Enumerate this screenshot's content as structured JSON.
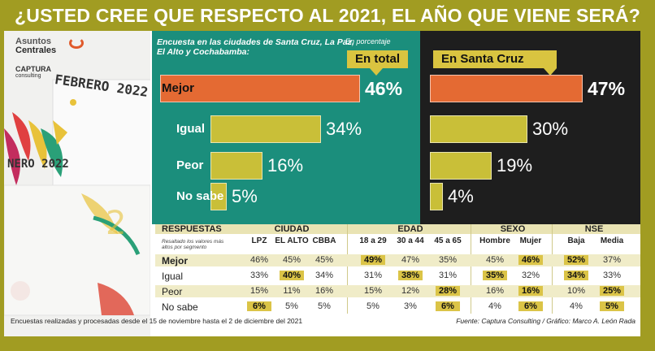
{
  "title": "¿USTED CREE QUE RESPECTO AL 2021, EL AÑO QUE VIENE SERÁ?",
  "logos": {
    "brand1_line1": "Asuntos",
    "brand1_line2": "Centrales",
    "brand2": "CAPTURA",
    "brand2_sub": "consulting"
  },
  "decor": {
    "feb": "FEBRERO 2022",
    "ene": "NERO 2022"
  },
  "panel_left": {
    "note_pre": "Encuesta ",
    "note_em": "en las ciudades de",
    "note_post": " Santa Cruz, La Paz, El Alto y Cochabamba:",
    "unit": "En porcentaje",
    "pill": "En total"
  },
  "panel_right": {
    "pill": "En Santa Cruz"
  },
  "colors": {
    "teal": "#1b8e7c",
    "dark": "#1e1e1e",
    "orange": "#e46a33",
    "olive": "#c9bf38",
    "highlight": "#dbc447"
  },
  "chart_data": [
    {
      "type": "bar",
      "title": "En total",
      "categories": [
        "Mejor",
        "Igual",
        "Peor",
        "No sabe"
      ],
      "values": [
        46,
        34,
        16,
        5
      ],
      "labels": [
        "46%",
        "34%",
        "16%",
        "5%"
      ],
      "ylim": [
        0,
        50
      ]
    },
    {
      "type": "bar",
      "title": "En Santa Cruz",
      "categories": [
        "Mejor",
        "Igual",
        "Peor",
        "No sabe"
      ],
      "values": [
        47,
        30,
        19,
        4
      ],
      "labels": [
        "47%",
        "30%",
        "19%",
        "4%"
      ],
      "ylim": [
        0,
        50
      ]
    },
    {
      "type": "table",
      "header": "RESPUESTAS",
      "subheader": "Resaltado los valores más altos por segmento",
      "groups": [
        {
          "name": "CIUDAD",
          "columns": [
            "LPZ",
            "EL ALTO",
            "CBBA"
          ]
        },
        {
          "name": "EDAD",
          "columns": [
            "18 a 29",
            "30 a 44",
            "45 a 65"
          ]
        },
        {
          "name": "SEXO",
          "columns": [
            "Hombre",
            "Mujer"
          ]
        },
        {
          "name": "NSE",
          "columns": [
            "Baja",
            "Media"
          ]
        }
      ],
      "rows": [
        {
          "label": "Mejor",
          "values": [
            "46%",
            "45%",
            "45%",
            "49%",
            "47%",
            "35%",
            "45%",
            "46%",
            "52%",
            "37%"
          ],
          "highlight": [
            false,
            false,
            false,
            true,
            false,
            false,
            false,
            true,
            true,
            false
          ]
        },
        {
          "label": "Igual",
          "values": [
            "33%",
            "40%",
            "34%",
            "31%",
            "38%",
            "31%",
            "35%",
            "32%",
            "34%",
            "33%"
          ],
          "highlight": [
            false,
            true,
            false,
            false,
            true,
            false,
            true,
            false,
            true,
            false
          ]
        },
        {
          "label": "Peor",
          "values": [
            "15%",
            "11%",
            "16%",
            "15%",
            "12%",
            "28%",
            "16%",
            "16%",
            "10%",
            "25%"
          ],
          "highlight": [
            false,
            false,
            false,
            false,
            false,
            true,
            false,
            true,
            false,
            true
          ]
        },
        {
          "label": "No sabe",
          "values": [
            "6%",
            "5%",
            "5%",
            "5%",
            "3%",
            "6%",
            "4%",
            "6%",
            "4%",
            "5%"
          ],
          "highlight": [
            true,
            false,
            false,
            false,
            false,
            true,
            false,
            true,
            false,
            true
          ]
        }
      ]
    }
  ],
  "footer": {
    "left": "Encuestas realizadas y procesadas desde el 15 de noviembre hasta el 2 de diciembre del 2021",
    "right": "Fuente: Captura Consulting / Gráfico: Marco A. León Rada"
  }
}
